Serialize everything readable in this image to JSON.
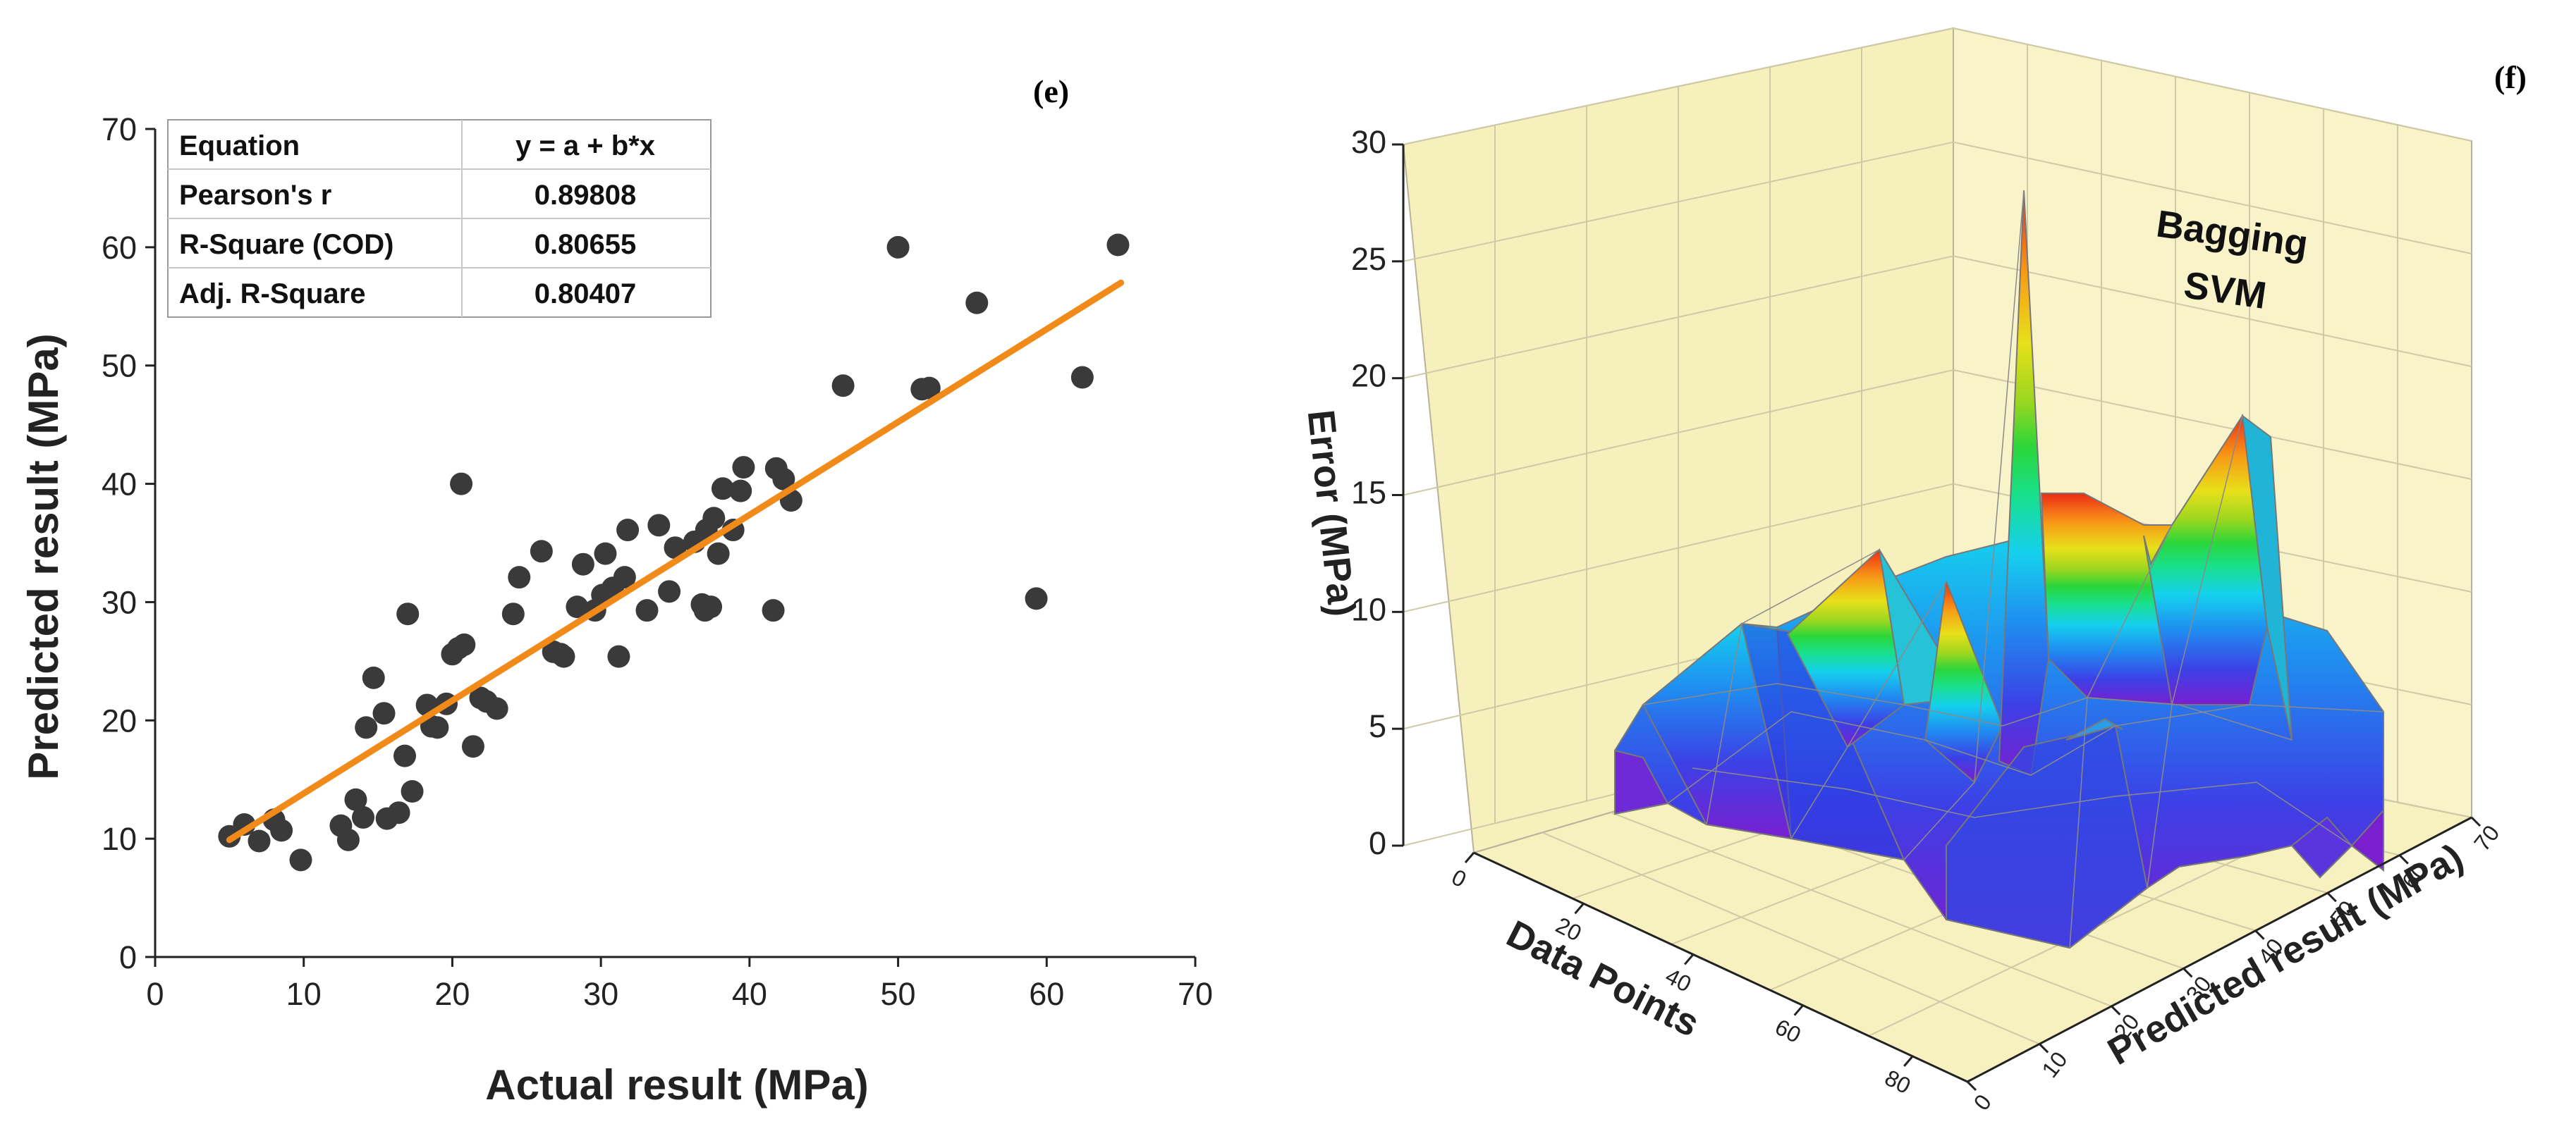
{
  "chart_data": [
    {
      "type": "scatter",
      "panel_label": "(e)",
      "title": "",
      "xlabel": "Actual result (MPa)",
      "ylabel": "Predicted result (MPa)",
      "xlim": [
        0,
        70
      ],
      "ylim": [
        0,
        70
      ],
      "xticks": [
        "0",
        "10",
        "20",
        "30",
        "40",
        "50",
        "60",
        "70"
      ],
      "yticks": [
        "0",
        "10",
        "20",
        "30",
        "40",
        "50",
        "60",
        "70"
      ],
      "grid": false,
      "colors": {
        "points": "#3a3a3a",
        "fit_line": "#f28a1a"
      },
      "points": [
        [
          5,
          10.2
        ],
        [
          6,
          11.2
        ],
        [
          7,
          9.8
        ],
        [
          8,
          11.6
        ],
        [
          8.5,
          10.7
        ],
        [
          9.8,
          8.2
        ],
        [
          12.5,
          11.1
        ],
        [
          13,
          9.9
        ],
        [
          13.5,
          13.3
        ],
        [
          14,
          11.8
        ],
        [
          14.2,
          19.4
        ],
        [
          14.7,
          23.6
        ],
        [
          15.4,
          20.6
        ],
        [
          15.6,
          11.7
        ],
        [
          16.4,
          12.2
        ],
        [
          16.8,
          17
        ],
        [
          17,
          29
        ],
        [
          17.3,
          14
        ],
        [
          18.3,
          21.3
        ],
        [
          18.6,
          19.5
        ],
        [
          19,
          19.4
        ],
        [
          19.6,
          21.4
        ],
        [
          20,
          25.6
        ],
        [
          20.4,
          26.1
        ],
        [
          20.6,
          40
        ],
        [
          20.8,
          26.4
        ],
        [
          21.4,
          17.8
        ],
        [
          21.9,
          21.9
        ],
        [
          22.3,
          21.6
        ],
        [
          23,
          21
        ],
        [
          24.1,
          29
        ],
        [
          24.5,
          32.1
        ],
        [
          26,
          34.3
        ],
        [
          26.8,
          25.8
        ],
        [
          27.3,
          25.6
        ],
        [
          27.5,
          25.4
        ],
        [
          28.4,
          29.6
        ],
        [
          28.8,
          33.2
        ],
        [
          29.6,
          29.3
        ],
        [
          30.1,
          30.6
        ],
        [
          30.3,
          34.1
        ],
        [
          30.8,
          31.2
        ],
        [
          31.2,
          25.4
        ],
        [
          31.6,
          32.1
        ],
        [
          31.8,
          36.1
        ],
        [
          33.1,
          29.3
        ],
        [
          33.9,
          36.5
        ],
        [
          34.6,
          30.9
        ],
        [
          35,
          34.6
        ],
        [
          36.3,
          35.1
        ],
        [
          36.8,
          29.8
        ],
        [
          37,
          29.3
        ],
        [
          37.1,
          36.1
        ],
        [
          37.4,
          29.6
        ],
        [
          37.6,
          37.1
        ],
        [
          37.9,
          34.1
        ],
        [
          38.2,
          39.6
        ],
        [
          38.9,
          36.1
        ],
        [
          39.4,
          39.4
        ],
        [
          39.6,
          41.4
        ],
        [
          41.6,
          29.3
        ],
        [
          41.8,
          41.3
        ],
        [
          42.3,
          40.4
        ],
        [
          42.8,
          38.6
        ],
        [
          46.3,
          48.3
        ],
        [
          50,
          60
        ],
        [
          51.6,
          48
        ],
        [
          52.1,
          48.1
        ],
        [
          55.3,
          55.3
        ],
        [
          59.3,
          30.3
        ],
        [
          62.4,
          49
        ],
        [
          64.8,
          60.2
        ]
      ],
      "fit_line": {
        "x": [
          5,
          65
        ],
        "y": [
          9.9,
          57
        ]
      },
      "stats_table": {
        "rows": [
          [
            "Equation",
            "y = a + b*x"
          ],
          [
            "Pearson's r",
            "0.89808"
          ],
          [
            "R-Square (COD)",
            "0.80655"
          ],
          [
            "Adj. R-Square",
            "0.80407"
          ]
        ]
      }
    },
    {
      "type": "surface3d",
      "panel_label": "(f)",
      "annotation_line1": "Bagging",
      "annotation_line2": "SVM",
      "zlabel": "Error (MPa)",
      "xlabel": "Data Points",
      "ylabel": "Predicted result (MPa)",
      "zlim": [
        0,
        30
      ],
      "xlim": [
        0,
        90
      ],
      "ylim": [
        0,
        70
      ],
      "zticks": [
        "0",
        "5",
        "10",
        "15",
        "20",
        "25",
        "30"
      ],
      "xticks": [
        "0",
        "20",
        "40",
        "60",
        "80"
      ],
      "yticks": [
        "0",
        "10",
        "20",
        "30",
        "40",
        "50",
        "60",
        "70"
      ],
      "colors": {
        "wall": "#f7f2c3",
        "grid": "#cfc9a6",
        "mesh": "#8a8a8a"
      },
      "colormap": [
        "#7a1fd0",
        "#3c40e6",
        "#1f8ef0",
        "#15d0ee",
        "#18e08a",
        "#2ad63a",
        "#9bd61f",
        "#e8e01a",
        "#f79a16",
        "#ef2b16"
      ],
      "surface_peaks": [
        {
          "data_point": 8,
          "predicted": 50,
          "error": 4
        },
        {
          "data_point": 27,
          "predicted": 45,
          "error": 6
        },
        {
          "data_point": 40,
          "predicted": 42,
          "error": 12
        },
        {
          "data_point": 50,
          "predicted": 45,
          "error": 12
        },
        {
          "data_point": 53,
          "predicted": 48,
          "error": 28
        },
        {
          "data_point": 62,
          "predicted": 44,
          "error": 14.5
        },
        {
          "data_point": 72,
          "predicted": 48,
          "error": 17.5
        },
        {
          "data_point": 48,
          "predicted": 35,
          "error": 5
        },
        {
          "data_point": 80,
          "predicted": 30,
          "error": 3
        }
      ]
    }
  ]
}
